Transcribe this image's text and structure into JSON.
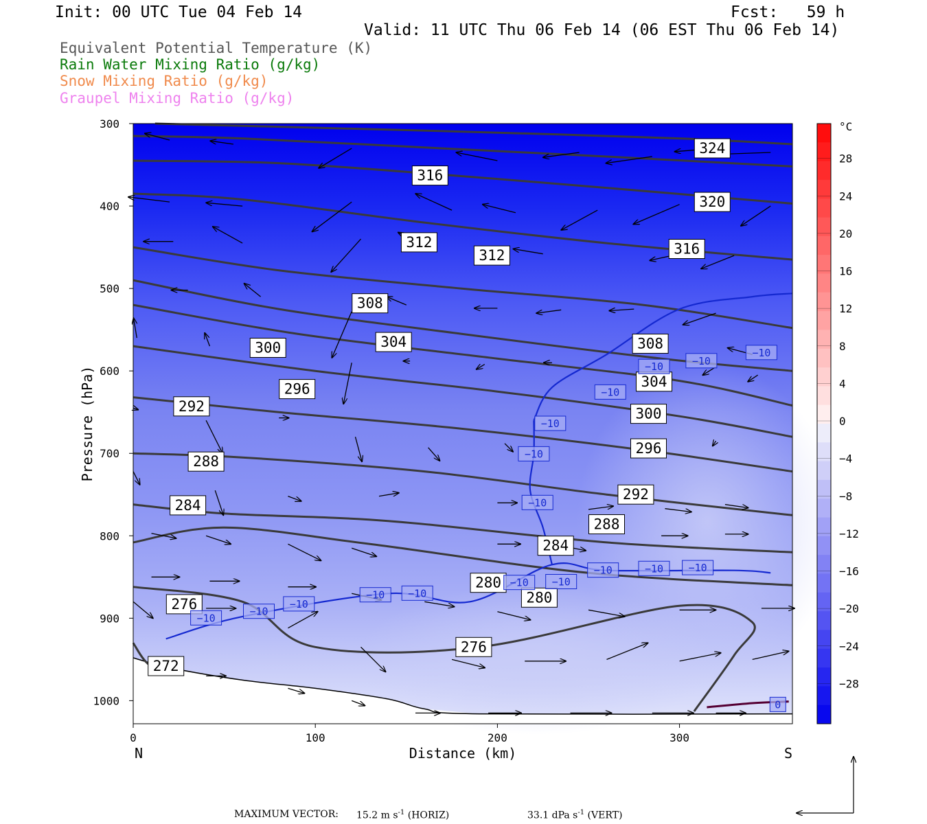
{
  "header": {
    "init": "Init: 00 UTC Tue 04 Feb 14",
    "fcst": "Fcst:   59 h",
    "valid": "Valid: 11 UTC Thu 06 Feb 14 (06 EST Thu 06 Feb 14)"
  },
  "fields": [
    {
      "label": "Equivalent Potential Temperature (K)",
      "color": "#555555"
    },
    {
      "label": "Rain Water Mixing Ratio (g/kg)",
      "color": "#0a7a0a"
    },
    {
      "label": "Snow Mixing Ratio (g/kg)",
      "color": "#f08a4b"
    },
    {
      "label": "Graupel Mixing Ratio (g/kg)",
      "color": "#ee82ee"
    }
  ],
  "colorbar": {
    "unit": "°C",
    "labels": [
      "28",
      "24",
      "20",
      "16",
      "12",
      "8",
      "4",
      "0",
      "−4",
      "−8",
      "−12",
      "−16",
      "−20",
      "−24",
      "−28"
    ]
  },
  "footer": {
    "max_vector_label": "MAXIMUM VECTOR:",
    "horiz_text": "15.2 m s",
    "horiz_exp": "-1",
    "horiz_unit": " (HORIZ)",
    "vert_text": "33.1 dPa s",
    "vert_exp": "-1",
    "vert_unit": " (VERT)"
  },
  "chart_data": {
    "type": "contour",
    "xlabel": "Distance (km)",
    "ylabel": "Pressure (hPa)",
    "xlim": [
      0,
      362
    ],
    "ylim": [
      1028,
      300
    ],
    "x_ticks": [
      0,
      100,
      200,
      300
    ],
    "x_tick_labels": [
      "0",
      "100",
      "200",
      "300"
    ],
    "y_ticks": [
      300,
      400,
      500,
      600,
      700,
      800,
      900,
      1000
    ],
    "y_tick_labels": [
      "300",
      "400",
      "500",
      "600",
      "700",
      "800",
      "900",
      "1000"
    ],
    "x_end_labels": {
      "left": "N",
      "right": "S"
    },
    "theta_e_contours": [
      {
        "value": 324,
        "points": [
          [
            12,
            300
          ],
          [
            100,
            305
          ],
          [
            200,
            311
          ],
          [
            300,
            318
          ],
          [
            362,
            325
          ]
        ]
      },
      {
        "value": 320,
        "points": [
          [
            0,
            315
          ],
          [
            60,
            318
          ],
          [
            160,
            329
          ],
          [
            260,
            340
          ],
          [
            362,
            352
          ]
        ]
      },
      {
        "value": 316,
        "points": [
          [
            0,
            345
          ],
          [
            80,
            348
          ],
          [
            170,
            362
          ],
          [
            260,
            378
          ],
          [
            362,
            397
          ]
        ]
      },
      {
        "value": 312,
        "points": [
          [
            0,
            385
          ],
          [
            60,
            392
          ],
          [
            160,
            420
          ],
          [
            260,
            445
          ],
          [
            362,
            465
          ]
        ]
      },
      {
        "value": 308,
        "points": [
          [
            0,
            450
          ],
          [
            80,
            478
          ],
          [
            180,
            500
          ],
          [
            280,
            520
          ],
          [
            362,
            548
          ]
        ]
      },
      {
        "value": 304,
        "points": [
          [
            0,
            490
          ],
          [
            80,
            525
          ],
          [
            180,
            555
          ],
          [
            290,
            585
          ],
          [
            362,
            600
          ]
        ]
      },
      {
        "value": 300,
        "points": [
          [
            0,
            520
          ],
          [
            90,
            555
          ],
          [
            200,
            585
          ],
          [
            300,
            612
          ],
          [
            362,
            642
          ]
        ]
      },
      {
        "value": 296,
        "points": [
          [
            0,
            570
          ],
          [
            100,
            600
          ],
          [
            200,
            625
          ],
          [
            300,
            655
          ],
          [
            362,
            680
          ]
        ]
      },
      {
        "value": 292,
        "points": [
          [
            0,
            632
          ],
          [
            80,
            650
          ],
          [
            180,
            670
          ],
          [
            280,
            696
          ],
          [
            362,
            722
          ]
        ]
      },
      {
        "value": 288,
        "points": [
          [
            0,
            700
          ],
          [
            60,
            705
          ],
          [
            160,
            722
          ],
          [
            260,
            750
          ],
          [
            362,
            775
          ]
        ]
      },
      {
        "value": 284,
        "points": [
          [
            0,
            762
          ],
          [
            50,
            773
          ],
          [
            140,
            782
          ],
          [
            260,
            808
          ],
          [
            362,
            820
          ]
        ]
      },
      {
        "value": 280,
        "points": [
          [
            0,
            808
          ],
          [
            50,
            790
          ],
          [
            130,
            810
          ],
          [
            250,
            845
          ],
          [
            362,
            860
          ]
        ]
      },
      {
        "value": 276,
        "points": [
          [
            0,
            862
          ],
          [
            60,
            880
          ],
          [
            100,
            935
          ],
          [
            190,
            935
          ],
          [
            300,
            885
          ],
          [
            340,
            905
          ],
          [
            330,
            945
          ],
          [
            308,
            1013
          ]
        ]
      },
      {
        "value": 272,
        "points": [
          [
            0,
            930
          ],
          [
            8,
            955
          ],
          [
            20,
            965
          ]
        ]
      }
    ],
    "temperature_minus10_line": {
      "value": -10,
      "points": [
        [
          18,
          925
        ],
        [
          60,
          898
        ],
        [
          140,
          870
        ],
        [
          185,
          880
        ],
        [
          230,
          835
        ],
        [
          260,
          842
        ],
        [
          330,
          842
        ],
        [
          350,
          845
        ]
      ]
    },
    "temperature_minus10_upper": {
      "value": -10,
      "points": [
        [
          220,
          660
        ],
        [
          230,
          620
        ],
        [
          260,
          580
        ],
        [
          300,
          525
        ],
        [
          340,
          510
        ],
        [
          362,
          506
        ]
      ]
    },
    "contour_labels": [
      {
        "text": "324",
        "x": 318,
        "y": 330
      },
      {
        "text": "316",
        "x": 163,
        "y": 363
      },
      {
        "text": "320",
        "x": 318,
        "y": 395
      },
      {
        "text": "312",
        "x": 157,
        "y": 444
      },
      {
        "text": "312",
        "x": 197,
        "y": 460
      },
      {
        "text": "316",
        "x": 304,
        "y": 452
      },
      {
        "text": "308",
        "x": 130,
        "y": 518
      },
      {
        "text": "304",
        "x": 143,
        "y": 565
      },
      {
        "text": "300",
        "x": 74,
        "y": 572
      },
      {
        "text": "308",
        "x": 284,
        "y": 567
      },
      {
        "text": "304",
        "x": 286,
        "y": 613
      },
      {
        "text": "296",
        "x": 90,
        "y": 622
      },
      {
        "text": "300",
        "x": 283,
        "y": 652
      },
      {
        "text": "292",
        "x": 32,
        "y": 643
      },
      {
        "text": "296",
        "x": 283,
        "y": 694
      },
      {
        "text": "288",
        "x": 40,
        "y": 710
      },
      {
        "text": "292",
        "x": 276,
        "y": 750
      },
      {
        "text": "284",
        "x": 30,
        "y": 763
      },
      {
        "text": "288",
        "x": 260,
        "y": 786
      },
      {
        "text": "284",
        "x": 232,
        "y": 812
      },
      {
        "text": "280",
        "x": 195,
        "y": 857
      },
      {
        "text": "280",
        "x": 223,
        "y": 875
      },
      {
        "text": "276",
        "x": 28,
        "y": 883
      },
      {
        "text": "276",
        "x": 187,
        "y": 935
      },
      {
        "text": "272",
        "x": 18,
        "y": 958
      }
    ],
    "temp_labels": [
      {
        "text": "−10",
        "x": 40,
        "y": 900
      },
      {
        "text": "−10",
        "x": 69,
        "y": 892
      },
      {
        "text": "−10",
        "x": 91,
        "y": 883
      },
      {
        "text": "−10",
        "x": 133,
        "y": 872
      },
      {
        "text": "−10",
        "x": 156,
        "y": 870
      },
      {
        "text": "−10",
        "x": 212,
        "y": 857
      },
      {
        "text": "−10",
        "x": 235,
        "y": 856
      },
      {
        "text": "−10",
        "x": 258,
        "y": 842
      },
      {
        "text": "−10",
        "x": 286,
        "y": 840
      },
      {
        "text": "−10",
        "x": 310,
        "y": 839
      },
      {
        "text": "−10",
        "x": 222,
        "y": 760
      },
      {
        "text": "−10",
        "x": 220,
        "y": 701
      },
      {
        "text": "−10",
        "x": 229,
        "y": 664
      },
      {
        "text": "−10",
        "x": 262,
        "y": 626
      },
      {
        "text": "−10",
        "x": 286,
        "y": 595
      },
      {
        "text": "−10",
        "x": 312,
        "y": 588
      },
      {
        "text": "−10",
        "x": 345,
        "y": 578
      },
      {
        "text": "0",
        "x": 354,
        "y": 1005
      }
    ]
  }
}
